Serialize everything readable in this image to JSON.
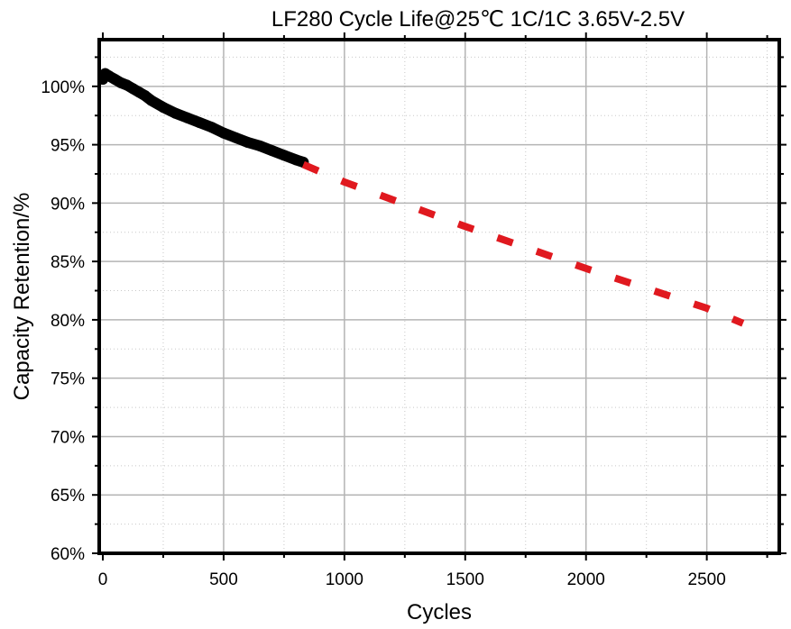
{
  "chart_data": {
    "type": "line",
    "title": "LF280  Cycle Life@25℃  1C/1C 3.65V-2.5V",
    "xlabel": "Cycles",
    "ylabel": "Capacity  Retention/%",
    "xlim": [
      -15,
      2800
    ],
    "ylim": [
      60,
      104
    ],
    "x_ticks": [
      0,
      500,
      1000,
      1500,
      2000,
      2500
    ],
    "x_tick_labels": [
      "0",
      "500",
      "1000",
      "1500",
      "2000",
      "2500"
    ],
    "y_ticks": [
      60,
      65,
      70,
      75,
      80,
      85,
      90,
      95,
      100
    ],
    "y_tick_labels": [
      "60%",
      "65%",
      "70%",
      "75%",
      "80%",
      "85%",
      "90%",
      "95%",
      "100%"
    ],
    "grid": true,
    "legend": "none",
    "series": [
      {
        "kind": "measured",
        "style": "thick-solid",
        "color": "#000000",
        "x": [
          0,
          10,
          25,
          50,
          75,
          100,
          125,
          150,
          175,
          200,
          250,
          300,
          350,
          400,
          450,
          500,
          550,
          600,
          650,
          700,
          750,
          800,
          830
        ],
        "y": [
          100.6,
          101.1,
          100.9,
          100.6,
          100.3,
          100.1,
          99.8,
          99.5,
          99.2,
          98.8,
          98.2,
          97.7,
          97.3,
          96.9,
          96.5,
          96.0,
          95.6,
          95.2,
          94.9,
          94.5,
          94.1,
          93.7,
          93.5
        ]
      },
      {
        "kind": "projected",
        "style": "dashed",
        "color": "#e0191f",
        "x": [
          830,
          1000,
          1500,
          2000,
          2500,
          2650
        ],
        "y": [
          93.3,
          91.8,
          88.0,
          84.4,
          81.0,
          79.7
        ]
      }
    ]
  }
}
